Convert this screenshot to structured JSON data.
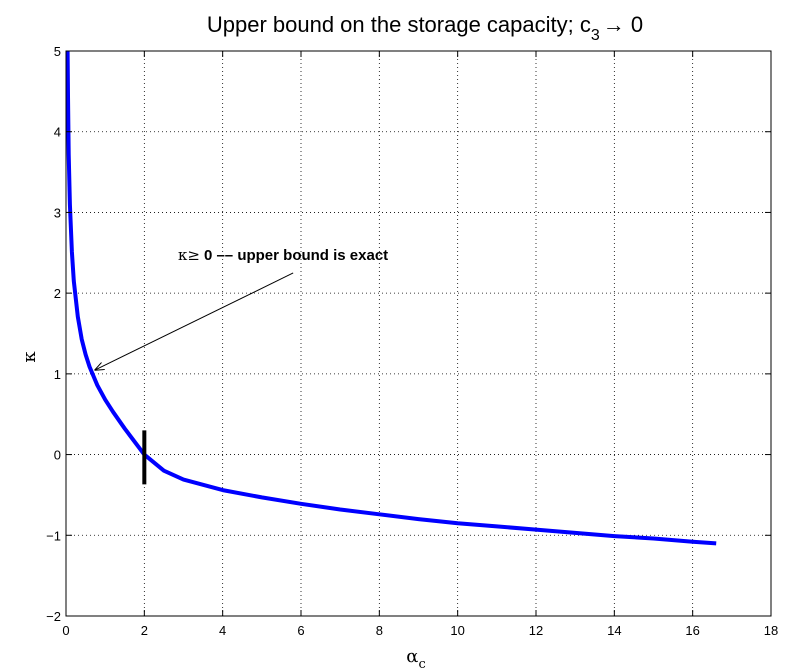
{
  "chart_data": {
    "type": "line",
    "title": {
      "main": "Upper bound on the storage capacity; c",
      "sub": "3",
      "tail": "→ 0"
    },
    "xlabel": {
      "main": "α",
      "sub": "c"
    },
    "ylabel": "κ",
    "xlim": [
      0,
      18
    ],
    "ylim": [
      -2,
      5
    ],
    "xticks": [
      0,
      2,
      4,
      6,
      8,
      10,
      12,
      14,
      16,
      18
    ],
    "yticks": [
      -2,
      -1,
      0,
      1,
      2,
      3,
      4,
      5
    ],
    "x_tick_labels": [
      "0",
      "2",
      "4",
      "6",
      "8",
      "10",
      "12",
      "14",
      "16",
      "18"
    ],
    "y_tick_labels": [
      "−2",
      "−1",
      "0",
      "1",
      "2",
      "3",
      "4",
      "5"
    ],
    "grid": true,
    "series": [
      {
        "color": "#0000ff",
        "x": [
          0.04,
          0.05,
          0.07,
          0.1,
          0.15,
          0.2,
          0.3,
          0.4,
          0.5,
          0.6,
          0.8,
          1.0,
          1.2,
          1.5,
          2.0,
          2.5,
          3.0,
          4.0,
          5.0,
          6.0,
          7.0,
          8.0,
          9.0,
          10.0,
          11.0,
          12.0,
          13.0,
          14.0,
          15.0,
          16.0,
          16.6
        ],
        "y": [
          5.0,
          4.44,
          3.72,
          3.1,
          2.51,
          2.15,
          1.71,
          1.43,
          1.24,
          1.09,
          0.86,
          0.68,
          0.53,
          0.32,
          0.0,
          -0.2,
          -0.31,
          -0.44,
          -0.53,
          -0.61,
          -0.68,
          -0.74,
          -0.8,
          -0.85,
          -0.89,
          -0.93,
          -0.97,
          -1.01,
          -1.04,
          -1.08,
          -1.1
        ]
      }
    ],
    "marker": {
      "x": 2,
      "y_from": -0.37,
      "y_to": 0.3,
      "color": "#000000"
    },
    "annotation": {
      "symbol": "κ≥",
      "text": "0 –– upper bound is exact",
      "point_to": {
        "x": 0.75,
        "y": 1.05
      },
      "from": {
        "x": 5.8,
        "y": 2.25
      }
    }
  }
}
